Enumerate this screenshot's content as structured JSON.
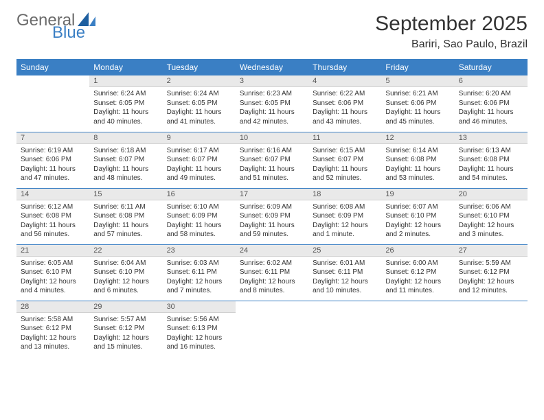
{
  "logo": {
    "text_general": "General",
    "text_blue": "Blue",
    "icon_color": "#1e5fa0"
  },
  "title": "September 2025",
  "location": "Bariri, Sao Paulo, Brazil",
  "colors": {
    "header_bg": "#3a7fc4",
    "header_text": "#ffffff",
    "daynum_bg": "#e9e9e9",
    "border": "#3a7fc4",
    "body_text": "#333333"
  },
  "weekdays": [
    "Sunday",
    "Monday",
    "Tuesday",
    "Wednesday",
    "Thursday",
    "Friday",
    "Saturday"
  ],
  "start_offset": 1,
  "days": [
    {
      "n": 1,
      "sunrise": "6:24 AM",
      "sunset": "6:05 PM",
      "daylight": "11 hours and 40 minutes."
    },
    {
      "n": 2,
      "sunrise": "6:24 AM",
      "sunset": "6:05 PM",
      "daylight": "11 hours and 41 minutes."
    },
    {
      "n": 3,
      "sunrise": "6:23 AM",
      "sunset": "6:05 PM",
      "daylight": "11 hours and 42 minutes."
    },
    {
      "n": 4,
      "sunrise": "6:22 AM",
      "sunset": "6:06 PM",
      "daylight": "11 hours and 43 minutes."
    },
    {
      "n": 5,
      "sunrise": "6:21 AM",
      "sunset": "6:06 PM",
      "daylight": "11 hours and 45 minutes."
    },
    {
      "n": 6,
      "sunrise": "6:20 AM",
      "sunset": "6:06 PM",
      "daylight": "11 hours and 46 minutes."
    },
    {
      "n": 7,
      "sunrise": "6:19 AM",
      "sunset": "6:06 PM",
      "daylight": "11 hours and 47 minutes."
    },
    {
      "n": 8,
      "sunrise": "6:18 AM",
      "sunset": "6:07 PM",
      "daylight": "11 hours and 48 minutes."
    },
    {
      "n": 9,
      "sunrise": "6:17 AM",
      "sunset": "6:07 PM",
      "daylight": "11 hours and 49 minutes."
    },
    {
      "n": 10,
      "sunrise": "6:16 AM",
      "sunset": "6:07 PM",
      "daylight": "11 hours and 51 minutes."
    },
    {
      "n": 11,
      "sunrise": "6:15 AM",
      "sunset": "6:07 PM",
      "daylight": "11 hours and 52 minutes."
    },
    {
      "n": 12,
      "sunrise": "6:14 AM",
      "sunset": "6:08 PM",
      "daylight": "11 hours and 53 minutes."
    },
    {
      "n": 13,
      "sunrise": "6:13 AM",
      "sunset": "6:08 PM",
      "daylight": "11 hours and 54 minutes."
    },
    {
      "n": 14,
      "sunrise": "6:12 AM",
      "sunset": "6:08 PM",
      "daylight": "11 hours and 56 minutes."
    },
    {
      "n": 15,
      "sunrise": "6:11 AM",
      "sunset": "6:08 PM",
      "daylight": "11 hours and 57 minutes."
    },
    {
      "n": 16,
      "sunrise": "6:10 AM",
      "sunset": "6:09 PM",
      "daylight": "11 hours and 58 minutes."
    },
    {
      "n": 17,
      "sunrise": "6:09 AM",
      "sunset": "6:09 PM",
      "daylight": "11 hours and 59 minutes."
    },
    {
      "n": 18,
      "sunrise": "6:08 AM",
      "sunset": "6:09 PM",
      "daylight": "12 hours and 1 minute."
    },
    {
      "n": 19,
      "sunrise": "6:07 AM",
      "sunset": "6:10 PM",
      "daylight": "12 hours and 2 minutes."
    },
    {
      "n": 20,
      "sunrise": "6:06 AM",
      "sunset": "6:10 PM",
      "daylight": "12 hours and 3 minutes."
    },
    {
      "n": 21,
      "sunrise": "6:05 AM",
      "sunset": "6:10 PM",
      "daylight": "12 hours and 4 minutes."
    },
    {
      "n": 22,
      "sunrise": "6:04 AM",
      "sunset": "6:10 PM",
      "daylight": "12 hours and 6 minutes."
    },
    {
      "n": 23,
      "sunrise": "6:03 AM",
      "sunset": "6:11 PM",
      "daylight": "12 hours and 7 minutes."
    },
    {
      "n": 24,
      "sunrise": "6:02 AM",
      "sunset": "6:11 PM",
      "daylight": "12 hours and 8 minutes."
    },
    {
      "n": 25,
      "sunrise": "6:01 AM",
      "sunset": "6:11 PM",
      "daylight": "12 hours and 10 minutes."
    },
    {
      "n": 26,
      "sunrise": "6:00 AM",
      "sunset": "6:12 PM",
      "daylight": "12 hours and 11 minutes."
    },
    {
      "n": 27,
      "sunrise": "5:59 AM",
      "sunset": "6:12 PM",
      "daylight": "12 hours and 12 minutes."
    },
    {
      "n": 28,
      "sunrise": "5:58 AM",
      "sunset": "6:12 PM",
      "daylight": "12 hours and 13 minutes."
    },
    {
      "n": 29,
      "sunrise": "5:57 AM",
      "sunset": "6:12 PM",
      "daylight": "12 hours and 15 minutes."
    },
    {
      "n": 30,
      "sunrise": "5:56 AM",
      "sunset": "6:13 PM",
      "daylight": "12 hours and 16 minutes."
    }
  ]
}
